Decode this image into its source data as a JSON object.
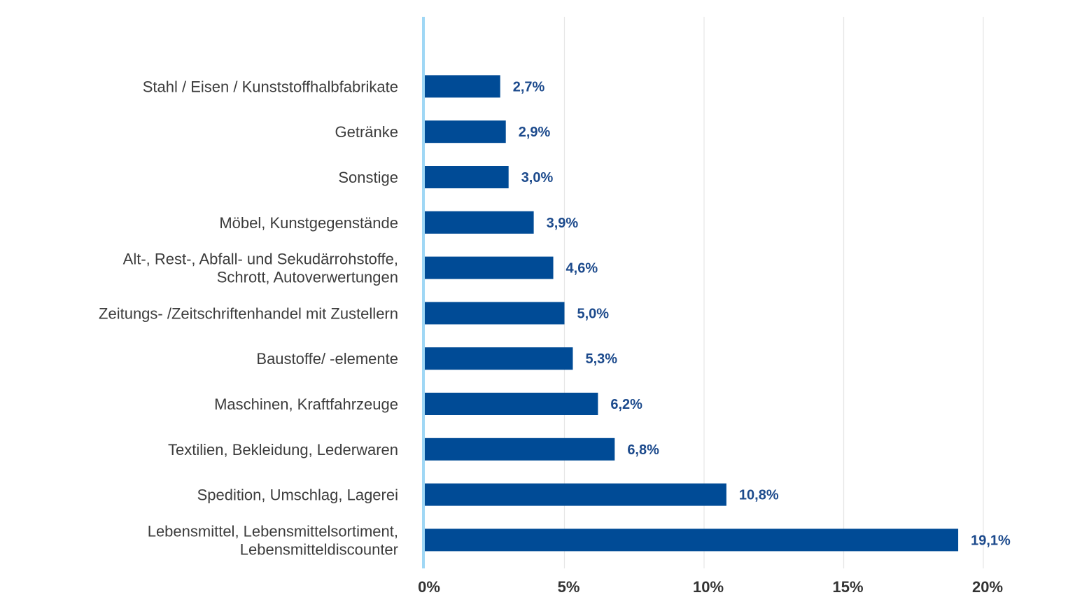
{
  "chart_data": {
    "type": "bar",
    "orientation": "horizontal",
    "title": "",
    "xlabel": "",
    "ylabel": "",
    "xlim": [
      0,
      20
    ],
    "grid": true,
    "categories": [
      "Stahl / Eisen / Kunststoffhalbfabrikate",
      "Getränke",
      "Sonstige",
      "Möbel, Kunstgegenstände",
      "Alt-, Rest-, Abfall- und Sekudärrohstoffe, Schrott, Autoverwertungen",
      "Zeitungs- /Zeitschriftenhandel mit Zustellern",
      "Baustoffe/ -elemente",
      "Maschinen, Kraftfahrzeuge",
      "Textilien, Bekleidung, Lederwaren",
      "Spedition, Umschlag, Lagerei",
      "Lebensmittel, Lebensmittelsortiment, Lebensmitteldiscounter"
    ],
    "category_lines": [
      [
        "Stahl / Eisen / Kunststoffhalbfabrikate"
      ],
      [
        "Getränke"
      ],
      [
        "Sonstige"
      ],
      [
        "Möbel, Kunstgegenstände"
      ],
      [
        "Alt-, Rest-, Abfall- und Sekudärrohstoffe,",
        "Schrott, Autoverwertungen"
      ],
      [
        "Zeitungs- /Zeitschriftenhandel mit Zustellern"
      ],
      [
        "Baustoffe/ -elemente"
      ],
      [
        "Maschinen, Kraftfahrzeuge"
      ],
      [
        "Textilien, Bekleidung, Lederwaren"
      ],
      [
        "Spedition, Umschlag, Lagerei"
      ],
      [
        "Lebensmittel, Lebensmittelsortiment,",
        "Lebensmitteldiscounter"
      ]
    ],
    "values": [
      2.7,
      2.9,
      3.0,
      3.9,
      4.6,
      5.0,
      5.3,
      6.2,
      6.8,
      10.8,
      19.1
    ],
    "value_labels": [
      "2,7%",
      "2,9%",
      "3,0%",
      "3,9%",
      "4,6%",
      "5,0%",
      "5,3%",
      "6,2%",
      "6,8%",
      "10,8%",
      "19,1%"
    ],
    "ticks": [
      0,
      5,
      10,
      15,
      20
    ],
    "tick_labels": [
      "0%",
      "5%",
      "10%",
      "15%",
      "20%"
    ],
    "colors": {
      "bar": "#004b96",
      "value_label": "#1c4a8c",
      "axis": "#9fd7f5",
      "grid": "#e6e6e6"
    }
  }
}
